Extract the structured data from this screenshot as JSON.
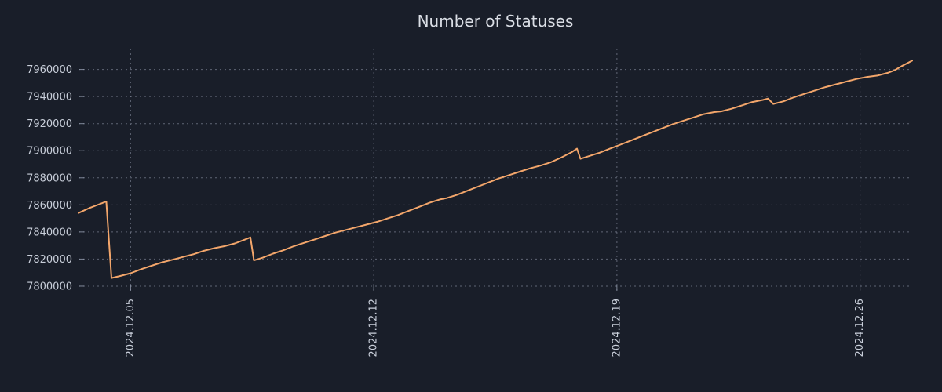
{
  "chart_data": {
    "type": "line",
    "title": "Number of Statuses",
    "xlabel": "",
    "ylabel": "",
    "grid": true,
    "legend": false,
    "xlim": [
      3.5,
      27.5
    ],
    "ylim": [
      7796500,
      7975400
    ],
    "x_ticks": [
      {
        "value": 5,
        "label": "2024.12.05"
      },
      {
        "value": 12,
        "label": "2024.12.12"
      },
      {
        "value": 19,
        "label": "2024.12.19"
      },
      {
        "value": 26,
        "label": "2024.12.26"
      }
    ],
    "y_ticks": [
      7800000,
      7820000,
      7840000,
      7860000,
      7880000,
      7900000,
      7920000,
      7940000,
      7960000
    ],
    "colors": {
      "background": "#191e29",
      "grid": "#9aa3b5",
      "tick_text": "#c9cfda",
      "title_text": "#dadee5",
      "line": "#f3a66b"
    },
    "series": [
      {
        "name": "statuses",
        "color": "#f3a66b",
        "points": [
          [
            3.5,
            7854000
          ],
          [
            3.8,
            7857500
          ],
          [
            4.1,
            7860500
          ],
          [
            4.3,
            7862500
          ],
          [
            4.45,
            7806000
          ],
          [
            4.7,
            7807500
          ],
          [
            5.0,
            7809500
          ],
          [
            5.3,
            7812500
          ],
          [
            5.6,
            7815000
          ],
          [
            5.9,
            7817500
          ],
          [
            6.2,
            7819500
          ],
          [
            6.5,
            7821500
          ],
          [
            6.8,
            7823500
          ],
          [
            7.1,
            7826000
          ],
          [
            7.4,
            7828000
          ],
          [
            7.7,
            7829500
          ],
          [
            8.0,
            7831500
          ],
          [
            8.3,
            7834500
          ],
          [
            8.45,
            7836000
          ],
          [
            8.55,
            7819000
          ],
          [
            8.8,
            7821000
          ],
          [
            9.1,
            7824000
          ],
          [
            9.4,
            7826500
          ],
          [
            9.7,
            7829500
          ],
          [
            10.0,
            7832000
          ],
          [
            10.3,
            7834500
          ],
          [
            10.6,
            7837000
          ],
          [
            10.9,
            7839500
          ],
          [
            11.2,
            7841500
          ],
          [
            11.5,
            7843500
          ],
          [
            11.8,
            7845500
          ],
          [
            12.1,
            7847500
          ],
          [
            12.4,
            7850000
          ],
          [
            12.7,
            7852500
          ],
          [
            13.0,
            7855500
          ],
          [
            13.3,
            7858500
          ],
          [
            13.6,
            7861500
          ],
          [
            13.9,
            7864000
          ],
          [
            14.1,
            7865000
          ],
          [
            14.4,
            7867500
          ],
          [
            14.7,
            7870500
          ],
          [
            15.0,
            7873500
          ],
          [
            15.3,
            7876500
          ],
          [
            15.6,
            7879500
          ],
          [
            15.9,
            7882000
          ],
          [
            16.2,
            7884500
          ],
          [
            16.5,
            7887000
          ],
          [
            16.8,
            7889000
          ],
          [
            17.1,
            7891500
          ],
          [
            17.4,
            7895000
          ],
          [
            17.7,
            7899000
          ],
          [
            17.85,
            7901500
          ],
          [
            17.95,
            7894000
          ],
          [
            18.2,
            7896000
          ],
          [
            18.5,
            7898500
          ],
          [
            18.8,
            7901500
          ],
          [
            19.1,
            7904500
          ],
          [
            19.4,
            7907500
          ],
          [
            19.7,
            7910500
          ],
          [
            20.0,
            7913500
          ],
          [
            20.3,
            7916500
          ],
          [
            20.6,
            7919500
          ],
          [
            20.9,
            7922000
          ],
          [
            21.2,
            7924500
          ],
          [
            21.5,
            7927000
          ],
          [
            21.8,
            7928500
          ],
          [
            22.0,
            7929000
          ],
          [
            22.3,
            7931000
          ],
          [
            22.6,
            7933500
          ],
          [
            22.9,
            7936000
          ],
          [
            23.2,
            7937500
          ],
          [
            23.35,
            7938500
          ],
          [
            23.5,
            7934500
          ],
          [
            23.8,
            7936500
          ],
          [
            24.1,
            7939500
          ],
          [
            24.4,
            7942000
          ],
          [
            24.7,
            7944500
          ],
          [
            25.0,
            7947000
          ],
          [
            25.3,
            7949000
          ],
          [
            25.6,
            7951000
          ],
          [
            25.9,
            7953000
          ],
          [
            26.2,
            7954500
          ],
          [
            26.5,
            7955500
          ],
          [
            26.8,
            7957500
          ],
          [
            27.0,
            7959500
          ],
          [
            27.2,
            7962500
          ],
          [
            27.5,
            7966500
          ]
        ]
      }
    ]
  }
}
